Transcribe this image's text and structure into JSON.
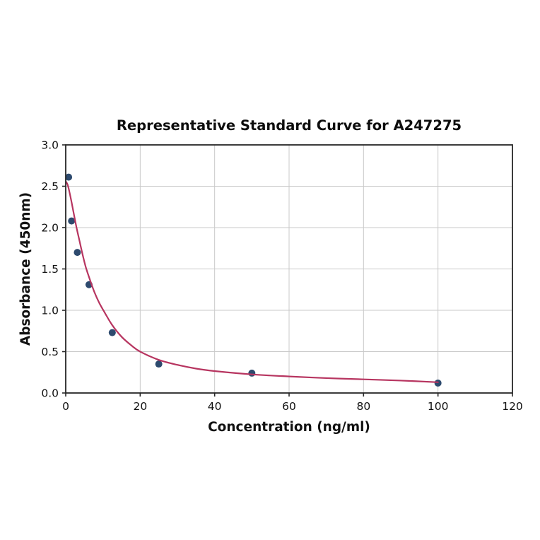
{
  "figure": {
    "background": "#ffffff"
  },
  "style": {
    "grid_color": "#c9c9c9",
    "spine_color": "#262626",
    "tick_color": "#262626",
    "text_color": "#111111",
    "title_color": "#0d0d0d"
  },
  "chart_data": {
    "type": "scatter",
    "title": "Representative Standard Curve for A247275",
    "xlabel": "Concentration (ng/ml)",
    "ylabel": "Absorbance (450nm)",
    "xlim": [
      0,
      120
    ],
    "ylim": [
      0,
      3.0
    ],
    "grid": true,
    "legend": "none",
    "xticks": {
      "values": [
        0,
        20,
        40,
        60,
        80,
        100,
        120
      ],
      "labels": [
        "0",
        "20",
        "40",
        "60",
        "80",
        "100",
        "120"
      ]
    },
    "yticks": {
      "values": [
        0,
        0.5,
        1.0,
        1.5,
        2.0,
        2.5,
        3.0
      ],
      "labels": [
        "0.0",
        "0.5",
        "1.0",
        "1.5",
        "2.0",
        "2.5",
        "3.0"
      ]
    },
    "series": [
      {
        "name": "standard-points",
        "kind": "scatter",
        "color": "#2d4a6e",
        "marker_radius": 5,
        "x": [
          0.78,
          1.56,
          3.12,
          6.25,
          12.5,
          25,
          50,
          100
        ],
        "y": [
          2.61,
          2.08,
          1.7,
          1.31,
          0.73,
          0.35,
          0.24,
          0.12
        ]
      },
      {
        "name": "fitted-curve",
        "kind": "line",
        "color": "#b73560",
        "width": 2.2,
        "x": [
          0,
          0.5,
          1.0,
          1.6,
          2.2,
          2.9,
          3.7,
          4.5,
          5.4,
          6.5,
          7.7,
          9.0,
          10.5,
          12.5,
          15,
          17.5,
          20,
          25,
          30,
          35,
          40,
          50,
          60,
          70,
          80,
          90,
          100
        ],
        "y": [
          2.56,
          2.52,
          2.43,
          2.3,
          2.16,
          2.0,
          1.84,
          1.68,
          1.52,
          1.37,
          1.22,
          1.09,
          0.97,
          0.82,
          0.68,
          0.58,
          0.5,
          0.4,
          0.34,
          0.295,
          0.265,
          0.225,
          0.2,
          0.18,
          0.165,
          0.15,
          0.13
        ]
      }
    ]
  }
}
